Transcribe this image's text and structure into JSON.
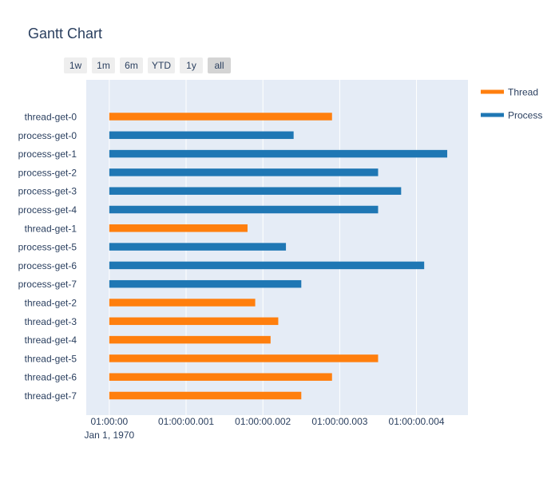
{
  "title": "Gantt Chart",
  "range_buttons": [
    {
      "label": "1w",
      "active": false
    },
    {
      "label": "1m",
      "active": false
    },
    {
      "label": "6m",
      "active": false
    },
    {
      "label": "YTD",
      "active": false
    },
    {
      "label": "1y",
      "active": false
    },
    {
      "label": "all",
      "active": true
    }
  ],
  "colors": {
    "plot_bg": "#e5ecf6",
    "thread": "#ff7f0e",
    "process": "#1f77b4",
    "text": "#2a3f5f"
  },
  "chart_data": {
    "type": "gantt",
    "title": "Gantt Chart",
    "x_unit": "seconds after 01:00:00 (Jan 1, 1970)",
    "x_ticks": [
      {
        "value": 0,
        "label": "01:00:00",
        "sublabel": "Jan 1, 1970"
      },
      {
        "value": 0.001,
        "label": "01:00:00.001"
      },
      {
        "value": 0.002,
        "label": "01:00:00.002"
      },
      {
        "value": 0.003,
        "label": "01:00:00.003"
      },
      {
        "value": 0.004,
        "label": "01:00:00.004"
      }
    ],
    "x_range": [
      -0.0003,
      0.00467
    ],
    "legend": [
      {
        "name": "Thread",
        "color": "#ff7f0e"
      },
      {
        "name": "Process",
        "color": "#1f77b4"
      }
    ],
    "legend_position": "top-right",
    "tasks": [
      {
        "task": "thread-get-0",
        "type": "Thread",
        "start": 0,
        "finish": 0.0029
      },
      {
        "task": "process-get-0",
        "type": "Process",
        "start": 0,
        "finish": 0.0024
      },
      {
        "task": "process-get-1",
        "type": "Process",
        "start": 0,
        "finish": 0.0044
      },
      {
        "task": "process-get-2",
        "type": "Process",
        "start": 0,
        "finish": 0.0035
      },
      {
        "task": "process-get-3",
        "type": "Process",
        "start": 0,
        "finish": 0.0038
      },
      {
        "task": "process-get-4",
        "type": "Process",
        "start": 0,
        "finish": 0.0035
      },
      {
        "task": "thread-get-1",
        "type": "Thread",
        "start": 0,
        "finish": 0.0018
      },
      {
        "task": "process-get-5",
        "type": "Process",
        "start": 0,
        "finish": 0.0023
      },
      {
        "task": "process-get-6",
        "type": "Process",
        "start": 0,
        "finish": 0.0041
      },
      {
        "task": "process-get-7",
        "type": "Process",
        "start": 0,
        "finish": 0.0025
      },
      {
        "task": "thread-get-2",
        "type": "Thread",
        "start": 0,
        "finish": 0.0019
      },
      {
        "task": "thread-get-3",
        "type": "Thread",
        "start": 0,
        "finish": 0.0022
      },
      {
        "task": "thread-get-4",
        "type": "Thread",
        "start": 0,
        "finish": 0.0021
      },
      {
        "task": "thread-get-5",
        "type": "Thread",
        "start": 0,
        "finish": 0.0035
      },
      {
        "task": "thread-get-6",
        "type": "Thread",
        "start": 0,
        "finish": 0.0029
      },
      {
        "task": "thread-get-7",
        "type": "Thread",
        "start": 0,
        "finish": 0.0025
      }
    ]
  }
}
